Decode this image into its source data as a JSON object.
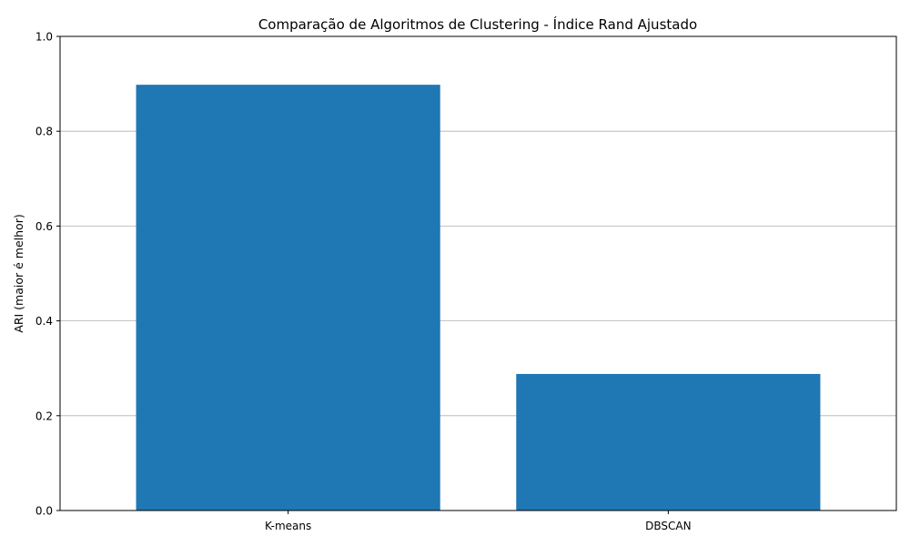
{
  "chart_data": {
    "type": "bar",
    "title": "Comparação de Algoritmos de Clustering - Índice Rand Ajustado",
    "xlabel": "",
    "ylabel": "ARI (maior é melhor)",
    "categories": [
      "K-means",
      "DBSCAN"
    ],
    "values": [
      0.898,
      0.288
    ],
    "ylim": [
      0,
      1
    ],
    "yticks": [
      "0.0",
      "0.2",
      "0.4",
      "0.6",
      "0.8",
      "1.0"
    ],
    "grid": "y-axis only",
    "legend": "none",
    "bar_color": "#1f77b4",
    "grid_color": "#b0b0b0"
  }
}
